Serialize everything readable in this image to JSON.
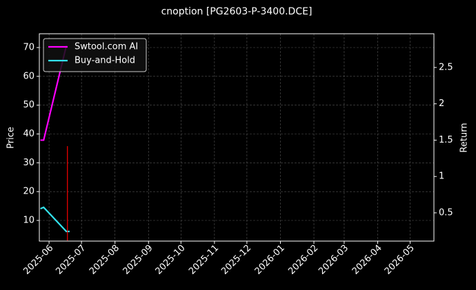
{
  "chart_data": {
    "type": "line",
    "title": "cnoption [PG2603-P-3400.DCE]",
    "y_label": "Price",
    "y2_label": "Return",
    "xlim": [
      "2025-05-23",
      "2026-05-23"
    ],
    "xticks": [
      {
        "value": "2025-06-01",
        "label": "2025-06"
      },
      {
        "value": "2025-07-01",
        "label": "2025-07"
      },
      {
        "value": "2025-08-01",
        "label": "2025-08"
      },
      {
        "value": "2025-09-01",
        "label": "2025-09"
      },
      {
        "value": "2025-10-01",
        "label": "2025-10"
      },
      {
        "value": "2025-11-01",
        "label": "2025-11"
      },
      {
        "value": "2025-12-01",
        "label": "2025-12"
      },
      {
        "value": "2026-01-01",
        "label": "2026-01"
      },
      {
        "value": "2026-02-01",
        "label": "2026-02"
      },
      {
        "value": "2026-03-01",
        "label": "2026-03"
      },
      {
        "value": "2026-04-01",
        "label": "2026-04"
      },
      {
        "value": "2026-05-01",
        "label": "2026-05"
      }
    ],
    "ylim": [
      2.83,
      74.78
    ],
    "yticks": [
      10,
      20,
      30,
      40,
      50,
      60,
      70
    ],
    "y2lim": [
      0.111,
      2.964
    ],
    "y2ticks": [
      0.5,
      1.0,
      1.5,
      2.0,
      2.5
    ],
    "grid": true,
    "legend": "upper left",
    "series": [
      {
        "name": "Swtool.com AI",
        "color": "#ff00ff",
        "axis": "y2",
        "x": [
          "2025-05-24",
          "2025-05-27",
          "2025-06-17"
        ],
        "values": [
          1.5,
          1.5,
          2.8
        ]
      },
      {
        "name": "Buy-and-Hold",
        "color": "#33e3ee",
        "axis": "y2",
        "x": [
          "2025-05-24",
          "2025-05-27",
          "2025-06-17",
          "2025-06-20"
        ],
        "values": [
          0.557,
          0.576,
          0.244,
          0.244
        ]
      },
      {
        "color": "#ff0000",
        "axis": "y",
        "x": [
          "2025-06-18",
          "2025-06-18"
        ],
        "values": [
          35.8,
          3
        ]
      }
    ]
  }
}
